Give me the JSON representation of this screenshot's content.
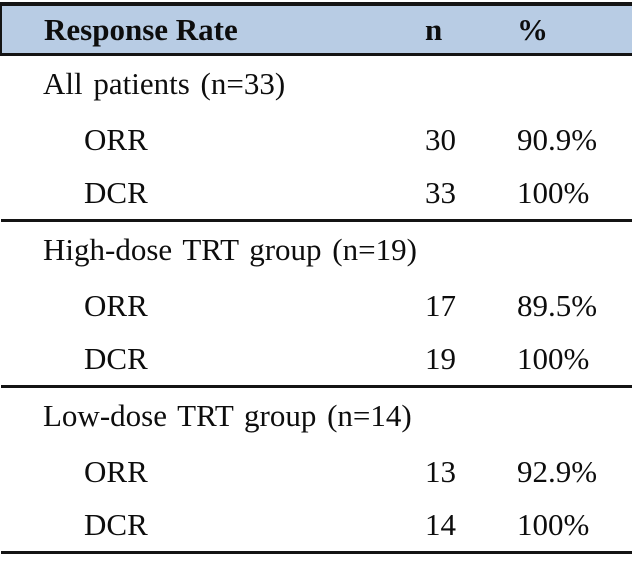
{
  "theme": {
    "header_bg": "#b8cce4",
    "rule_color": "#141414",
    "text_color": "#0d0d0d"
  },
  "table": {
    "header": {
      "col1": "Response Rate",
      "col2": "n",
      "col3": "%"
    },
    "sections": [
      {
        "title": "All patients (n=33)",
        "rows": [
          {
            "label": "ORR",
            "n": "30",
            "pct": "90.9%"
          },
          {
            "label": "DCR",
            "n": "33",
            "pct": "100%"
          }
        ]
      },
      {
        "title": "High-dose TRT group (n=19)",
        "rows": [
          {
            "label": "ORR",
            "n": "17",
            "pct": "89.5%"
          },
          {
            "label": "DCR",
            "n": "19",
            "pct": "100%"
          }
        ]
      },
      {
        "title": "Low-dose TRT group (n=14)",
        "rows": [
          {
            "label": "ORR",
            "n": "13",
            "pct": "92.9%"
          },
          {
            "label": "DCR",
            "n": "14",
            "pct": "100%"
          }
        ]
      }
    ]
  }
}
